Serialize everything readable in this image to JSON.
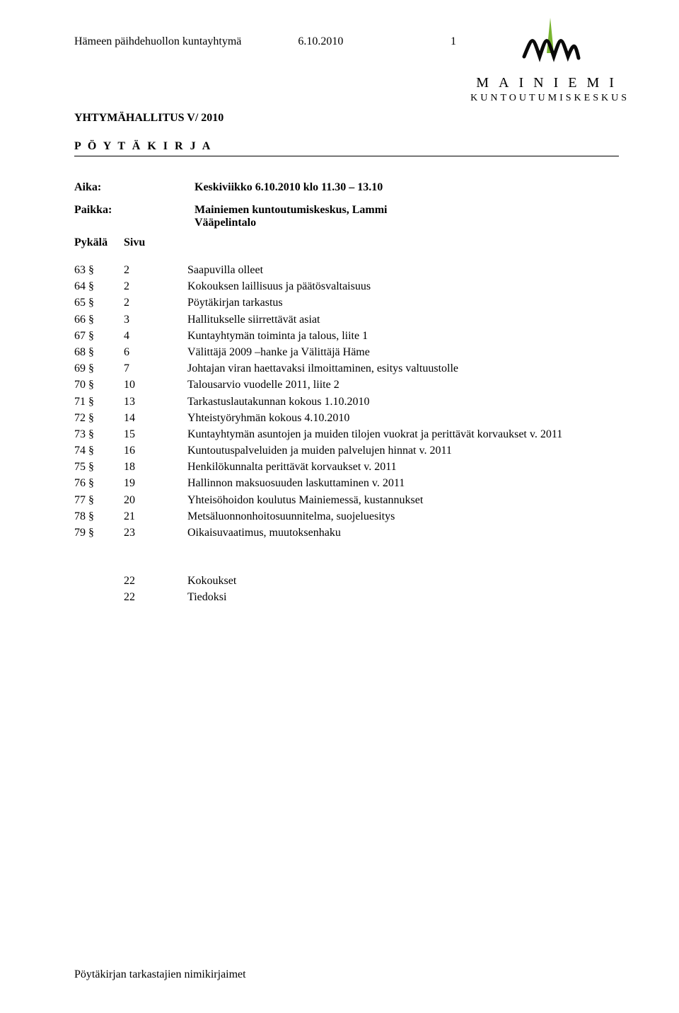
{
  "header": {
    "org": "Hämeen päihdehuollon kuntayhtymä",
    "date": "6.10.2010",
    "page_no": "1"
  },
  "logo": {
    "wordmark": "MAINIEMI",
    "subtitle": "KUNTOUTUMISKESKUS",
    "leaf_color": "#79b530",
    "ink_color": "#0a0a0a"
  },
  "titles": {
    "board": "YHTYMÄHALLITUS V/ 2010",
    "minutes": "P Ö Y T Ä K I R J A"
  },
  "meta": {
    "aika_label": "Aika:",
    "aika_value": "Keskiviikko 6.10.2010 klo 11.30 – 13.10",
    "paikka_label": "Paikka:",
    "paikka_value_1": "Mainiemen kuntoutumiskeskus, Lammi",
    "paikka_value_2": "Vääpelintalo",
    "pykala_label": "Pykälä",
    "sivu_label": "Sivu"
  },
  "toc": [
    {
      "pykala": "63 §",
      "sivu": "2",
      "desc": "Saapuvilla olleet"
    },
    {
      "pykala": "64 §",
      "sivu": "2",
      "desc": "Kokouksen laillisuus ja päätösvaltaisuus"
    },
    {
      "pykala": "65 §",
      "sivu": "2",
      "desc": "Pöytäkirjan tarkastus"
    },
    {
      "pykala": "66 §",
      "sivu": "3",
      "desc": "Hallitukselle siirrettävät asiat"
    },
    {
      "pykala": "67 §",
      "sivu": "4",
      "desc": "Kuntayhtymän toiminta ja talous, liite 1"
    },
    {
      "pykala": "68 §",
      "sivu": "6",
      "desc": "Välittäjä 2009 –hanke ja Välittäjä Häme"
    },
    {
      "pykala": "69 §",
      "sivu": "7",
      "desc": "Johtajan viran haettavaksi ilmoittaminen, esitys valtuustolle"
    },
    {
      "pykala": "70 §",
      "sivu": "10",
      "desc": "Talousarvio vuodelle 2011, liite 2"
    },
    {
      "pykala": "71 §",
      "sivu": "13",
      "desc": "Tarkastuslautakunnan kokous 1.10.2010"
    },
    {
      "pykala": "72 §",
      "sivu": "14",
      "desc": "Yhteistyöryhmän kokous 4.10.2010"
    },
    {
      "pykala": "73 §",
      "sivu": "15",
      "desc": "Kuntayhtymän asuntojen ja muiden tilojen vuokrat ja perittävät korvaukset v. 2011"
    },
    {
      "pykala": "74 §",
      "sivu": "16",
      "desc": "Kuntoutuspalveluiden ja muiden palvelujen hinnat v. 2011"
    },
    {
      "pykala": "75 §",
      "sivu": "18",
      "desc": "Henkilökunnalta perittävät korvaukset v. 2011"
    },
    {
      "pykala": "76 §",
      "sivu": "19",
      "desc": "Hallinnon maksuosuuden laskuttaminen v. 2011"
    },
    {
      "pykala": "77 §",
      "sivu": "20",
      "desc": "Yhteisöhoidon koulutus Mainiemessä, kustannukset"
    },
    {
      "pykala": "78 §",
      "sivu": "21",
      "desc": "Metsäluonnonhoitosuunnitelma, suojeluesitys"
    },
    {
      "pykala": "79 §",
      "sivu": "23",
      "desc": "Oikaisuvaatimus, muutoksenhaku"
    }
  ],
  "end_block": [
    {
      "sivu": "22",
      "desc": "Kokoukset"
    },
    {
      "sivu": "22",
      "desc": "Tiedoksi"
    }
  ],
  "footer": "Pöytäkirjan tarkastajien nimikirjaimet"
}
